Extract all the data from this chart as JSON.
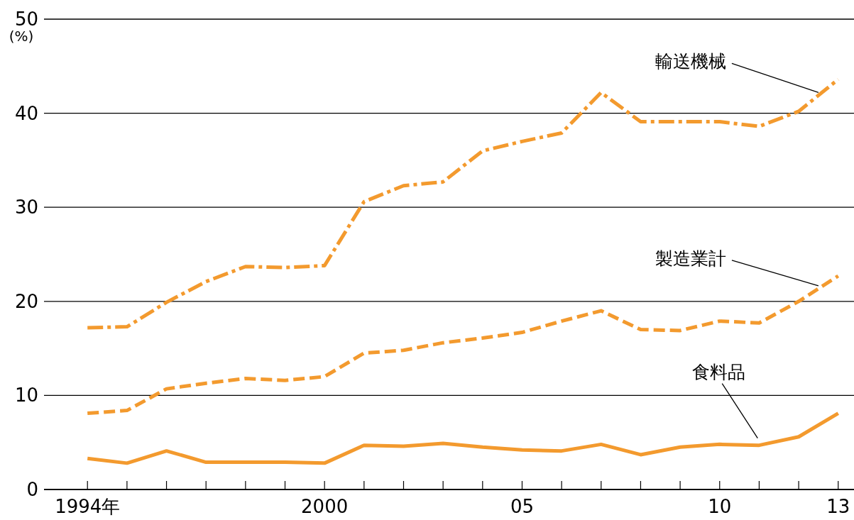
{
  "chart_data": {
    "type": "line",
    "ylabel": "(%)",
    "x": [
      1994,
      1995,
      1996,
      1997,
      1998,
      1999,
      2000,
      2001,
      2002,
      2003,
      2004,
      2005,
      2006,
      2007,
      2008,
      2009,
      2010,
      2011,
      2012,
      2013
    ],
    "series": [
      {
        "name": "輸送機械",
        "color": "#f39a2e",
        "line_style": "dashdot",
        "values": [
          17.2,
          17.3,
          19.9,
          22.1,
          23.7,
          23.6,
          23.8,
          30.6,
          32.3,
          32.7,
          36.0,
          37.0,
          37.9,
          42.2,
          39.1,
          39.1,
          39.1,
          38.6,
          40.2,
          43.6
        ]
      },
      {
        "name": "製造業計",
        "color": "#f39a2e",
        "line_style": "dashed",
        "values": [
          8.1,
          8.4,
          10.7,
          11.3,
          11.8,
          11.6,
          12.0,
          14.5,
          14.8,
          15.6,
          16.1,
          16.7,
          17.9,
          19.0,
          17.0,
          16.9,
          17.9,
          17.7,
          20.0,
          22.7
        ]
      },
      {
        "name": "食料品",
        "color": "#f39a2e",
        "line_style": "solid",
        "values": [
          3.3,
          2.8,
          4.1,
          2.9,
          2.9,
          2.9,
          2.8,
          4.7,
          4.6,
          4.9,
          4.5,
          4.2,
          4.1,
          4.8,
          3.7,
          4.5,
          4.8,
          4.7,
          5.6,
          8.1
        ]
      }
    ],
    "xlim": [
      1992.9,
      2013.4
    ],
    "xticks": [
      {
        "value": 1994,
        "label": "1994年"
      },
      {
        "value": 1995,
        "label": null
      },
      {
        "value": 1996,
        "label": null
      },
      {
        "value": 1997,
        "label": null
      },
      {
        "value": 1998,
        "label": null
      },
      {
        "value": 1999,
        "label": null
      },
      2000,
      {
        "value": 2001,
        "label": null
      },
      {
        "value": 2002,
        "label": null
      },
      {
        "value": 2003,
        "label": null
      },
      {
        "value": 2004,
        "label": null
      },
      {
        "value": 2005,
        "label": "05"
      },
      {
        "value": 2006,
        "label": null
      },
      {
        "value": 2007,
        "label": null
      },
      {
        "value": 2008,
        "label": null
      },
      {
        "value": 2009,
        "label": null
      },
      {
        "value": 2010,
        "label": "10"
      },
      {
        "value": 2011,
        "label": null
      },
      {
        "value": 2012,
        "label": null
      },
      {
        "value": 2013,
        "label": "13"
      }
    ],
    "ylim": [
      0,
      50
    ],
    "yticks": [
      0,
      10,
      20,
      30,
      40,
      50
    ],
    "grid": "y",
    "legend": false,
    "marker": "none"
  }
}
